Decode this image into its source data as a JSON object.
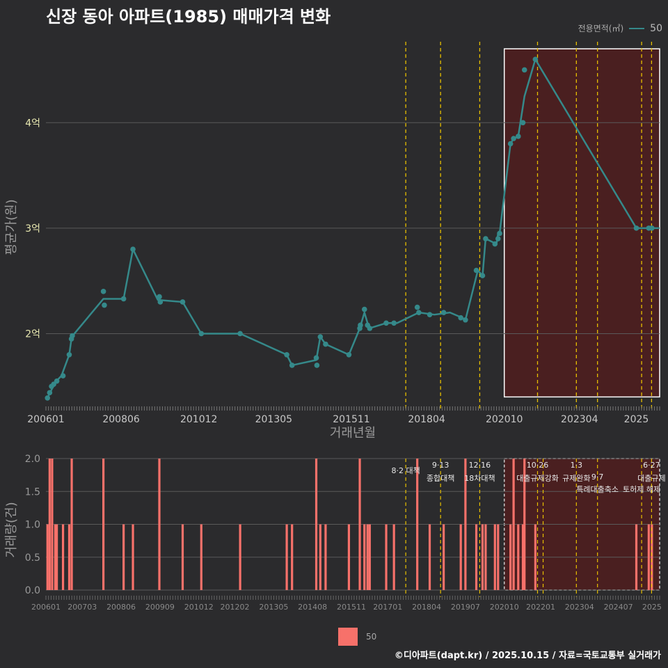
{
  "title": "신장 동아 아파트(1985) 매매가격 변화",
  "legend": {
    "title": "전용면적(㎡)",
    "value": "50"
  },
  "footer": "©디아파트(dapt.kr) / 2025.10.15 / 자료=국토교통부 실거래가",
  "colors": {
    "line": "#35898a",
    "bar": "#f7716a",
    "highlight": "#4a1f20",
    "policy": "#e8c000",
    "grid": "#5a5a5a"
  },
  "chart_data": [
    {
      "type": "line",
      "title": "신장 동아 아파트(1985) 매매가격 변화",
      "xlabel": "거래년월",
      "ylabel": "평균가(원)",
      "x_range": [
        2006.0,
        2025.75
      ],
      "ylim": [
        1.35,
        4.8
      ],
      "y_ticks": [
        {
          "v": 2,
          "label": "2억"
        },
        {
          "v": 3,
          "label": "3억"
        },
        {
          "v": 4,
          "label": "4억"
        }
      ],
      "x_ticks": [
        {
          "v": 2006.0,
          "label": "200601"
        },
        {
          "v": 2008.42,
          "label": "200806"
        },
        {
          "v": 2010.92,
          "label": "201012"
        },
        {
          "v": 2013.33,
          "label": "201305"
        },
        {
          "v": 2015.83,
          "label": "201511"
        },
        {
          "v": 2018.25,
          "label": "201804"
        },
        {
          "v": 2020.75,
          "label": "202010"
        },
        {
          "v": 2023.17,
          "label": "202304"
        },
        {
          "v": 2025.0,
          "label": "2025"
        }
      ],
      "highlight_range": [
        2020.75,
        2025.75
      ],
      "highlight_ylim": [
        1.4,
        4.7
      ],
      "policy_lines": [
        2017.58,
        2018.7,
        2019.96,
        2021.82,
        2023.07,
        2023.75,
        2025.17,
        2025.49
      ],
      "series": [
        {
          "name": "50",
          "line": [
            [
              2006.05,
              1.39
            ],
            [
              2006.15,
              1.45
            ],
            [
              2006.3,
              1.54
            ],
            [
              2006.5,
              1.6
            ],
            [
              2006.75,
              1.8
            ],
            [
              2006.83,
              1.97
            ],
            [
              2007.85,
              2.33
            ],
            [
              2008.5,
              2.33
            ],
            [
              2008.8,
              2.8
            ],
            [
              2009.6,
              2.32
            ],
            [
              2010.4,
              2.3
            ],
            [
              2011.0,
              2.0
            ],
            [
              2012.25,
              2.0
            ],
            [
              2013.75,
              1.8
            ],
            [
              2013.92,
              1.7
            ],
            [
              2014.7,
              1.75
            ],
            [
              2014.83,
              1.97
            ],
            [
              2015.0,
              1.9
            ],
            [
              2015.75,
              1.8
            ],
            [
              2016.1,
              2.05
            ],
            [
              2016.25,
              2.2
            ],
            [
              2016.4,
              2.05
            ],
            [
              2016.95,
              2.1
            ],
            [
              2017.3,
              2.1
            ],
            [
              2018.0,
              2.2
            ],
            [
              2018.5,
              2.18
            ],
            [
              2019.0,
              2.2
            ],
            [
              2019.4,
              2.15
            ],
            [
              2019.5,
              2.13
            ],
            [
              2019.9,
              2.6
            ],
            [
              2020.05,
              2.55
            ],
            [
              2020.15,
              2.9
            ],
            [
              2020.5,
              2.85
            ],
            [
              2020.55,
              2.95
            ],
            [
              2020.6,
              2.95
            ],
            [
              2020.95,
              3.8
            ],
            [
              2021.05,
              3.85
            ],
            [
              2021.2,
              3.87
            ],
            [
              2021.4,
              4.25
            ],
            [
              2021.75,
              4.6
            ],
            [
              2025.0,
              3.0
            ],
            [
              2025.75,
              3.0
            ]
          ],
          "points": [
            [
              2006.05,
              1.39
            ],
            [
              2006.12,
              1.44
            ],
            [
              2006.18,
              1.5
            ],
            [
              2006.25,
              1.52
            ],
            [
              2006.35,
              1.55
            ],
            [
              2006.55,
              1.6
            ],
            [
              2006.75,
              1.8
            ],
            [
              2006.82,
              1.95
            ],
            [
              2006.85,
              1.98
            ],
            [
              2007.85,
              2.4
            ],
            [
              2007.88,
              2.27
            ],
            [
              2008.5,
              2.33
            ],
            [
              2008.8,
              2.8
            ],
            [
              2009.65,
              2.35
            ],
            [
              2009.68,
              2.3
            ],
            [
              2010.4,
              2.3
            ],
            [
              2011.0,
              2.0
            ],
            [
              2012.25,
              2.0
            ],
            [
              2013.75,
              1.8
            ],
            [
              2013.92,
              1.7
            ],
            [
              2014.7,
              1.77
            ],
            [
              2014.72,
              1.7
            ],
            [
              2014.83,
              1.97
            ],
            [
              2015.0,
              1.9
            ],
            [
              2015.75,
              1.8
            ],
            [
              2016.1,
              2.05
            ],
            [
              2016.12,
              2.08
            ],
            [
              2016.25,
              2.23
            ],
            [
              2016.35,
              2.08
            ],
            [
              2016.42,
              2.05
            ],
            [
              2016.95,
              2.1
            ],
            [
              2017.2,
              2.1
            ],
            [
              2017.95,
              2.25
            ],
            [
              2018.0,
              2.2
            ],
            [
              2018.35,
              2.18
            ],
            [
              2018.8,
              2.2
            ],
            [
              2019.35,
              2.15
            ],
            [
              2019.5,
              2.13
            ],
            [
              2019.85,
              2.6
            ],
            [
              2020.05,
              2.55
            ],
            [
              2020.15,
              2.9
            ],
            [
              2020.45,
              2.85
            ],
            [
              2020.55,
              2.9
            ],
            [
              2020.6,
              2.95
            ],
            [
              2020.95,
              3.8
            ],
            [
              2021.05,
              3.85
            ],
            [
              2021.2,
              3.87
            ],
            [
              2021.35,
              4.0
            ],
            [
              2021.4,
              4.5
            ],
            [
              2021.75,
              4.6
            ],
            [
              2025.0,
              3.0
            ],
            [
              2025.4,
              3.0
            ],
            [
              2025.5,
              3.0
            ]
          ]
        }
      ]
    },
    {
      "type": "bar",
      "ylabel": "거래량(건)",
      "x_range": [
        2006.0,
        2025.75
      ],
      "ylim": [
        0,
        2.0
      ],
      "y_ticks": [
        {
          "v": 0,
          "label": "0.0"
        },
        {
          "v": 0.5,
          "label": "0.5"
        },
        {
          "v": 1.0,
          "label": "1.0"
        },
        {
          "v": 1.5,
          "label": "1.5"
        },
        {
          "v": 2.0,
          "label": "2.0"
        }
      ],
      "x_ticks": [
        {
          "v": 2006.0,
          "label": "200601"
        },
        {
          "v": 2007.17,
          "label": "200703"
        },
        {
          "v": 2008.42,
          "label": "200806"
        },
        {
          "v": 2009.67,
          "label": "200909"
        },
        {
          "v": 2010.92,
          "label": "201012"
        },
        {
          "v": 2012.08,
          "label": "201202"
        },
        {
          "v": 2013.33,
          "label": "201305"
        },
        {
          "v": 2014.58,
          "label": "201408"
        },
        {
          "v": 2015.83,
          "label": "201511"
        },
        {
          "v": 2017.0,
          "label": "201701"
        },
        {
          "v": 2018.25,
          "label": "201804"
        },
        {
          "v": 2019.5,
          "label": "201907"
        },
        {
          "v": 2020.75,
          "label": "202010"
        },
        {
          "v": 2021.92,
          "label": "202201"
        },
        {
          "v": 2023.17,
          "label": "202304"
        },
        {
          "v": 2024.42,
          "label": "202407"
        },
        {
          "v": 2025.5,
          "label": "2025"
        }
      ],
      "highlight_range": [
        2020.75,
        2025.75
      ],
      "policy_lines": [
        2017.58,
        2018.7,
        2019.96,
        2021.82,
        2022.0,
        2023.07,
        2023.75,
        2025.17,
        2025.49
      ],
      "annotations": [
        {
          "x": 2017.58,
          "line1": "8·2 대책",
          "line2": ""
        },
        {
          "x": 2018.7,
          "line1": "9·13",
          "line2": "종합대책"
        },
        {
          "x": 2019.96,
          "line1": "12·16",
          "line2": "18차대책"
        },
        {
          "x": 2021.82,
          "line1": "10·26",
          "line2": "대출규제강화"
        },
        {
          "x": 2023.07,
          "line1": "1·3",
          "line2": "규제완화"
        },
        {
          "x": 2023.75,
          "line1": "",
          "line2": "9·7"
        },
        {
          "x": 2023.75,
          "line1": "",
          "line2": "특례대출축소"
        },
        {
          "x": 2025.17,
          "line1": "",
          "line2": "토허제 해제"
        },
        {
          "x": 2025.49,
          "line1": "6·27",
          "line2": "대출규제"
        }
      ],
      "series": [
        {
          "name": "50",
          "bars": [
            [
              2006.05,
              1
            ],
            [
              2006.12,
              2
            ],
            [
              2006.2,
              2
            ],
            [
              2006.3,
              1
            ],
            [
              2006.35,
              1
            ],
            [
              2006.55,
              1
            ],
            [
              2006.75,
              1
            ],
            [
              2006.83,
              2
            ],
            [
              2007.85,
              2
            ],
            [
              2008.5,
              1
            ],
            [
              2008.8,
              1
            ],
            [
              2009.65,
              2
            ],
            [
              2010.4,
              1
            ],
            [
              2011.0,
              1
            ],
            [
              2012.25,
              1
            ],
            [
              2013.75,
              1
            ],
            [
              2013.92,
              1
            ],
            [
              2014.7,
              2
            ],
            [
              2014.83,
              1
            ],
            [
              2015.0,
              1
            ],
            [
              2015.75,
              1
            ],
            [
              2016.1,
              2
            ],
            [
              2016.25,
              1
            ],
            [
              2016.35,
              1
            ],
            [
              2016.42,
              1
            ],
            [
              2016.95,
              1
            ],
            [
              2017.2,
              1
            ],
            [
              2017.95,
              2
            ],
            [
              2018.35,
              1
            ],
            [
              2018.8,
              1
            ],
            [
              2019.35,
              1
            ],
            [
              2019.5,
              2
            ],
            [
              2019.85,
              1
            ],
            [
              2020.05,
              1
            ],
            [
              2020.15,
              1
            ],
            [
              2020.45,
              1
            ],
            [
              2020.55,
              1
            ],
            [
              2020.95,
              1
            ],
            [
              2021.05,
              2
            ],
            [
              2021.2,
              1
            ],
            [
              2021.35,
              1
            ],
            [
              2021.4,
              2
            ],
            [
              2021.75,
              1
            ],
            [
              2025.0,
              1
            ],
            [
              2025.4,
              1
            ],
            [
              2025.5,
              1
            ]
          ]
        }
      ]
    }
  ]
}
